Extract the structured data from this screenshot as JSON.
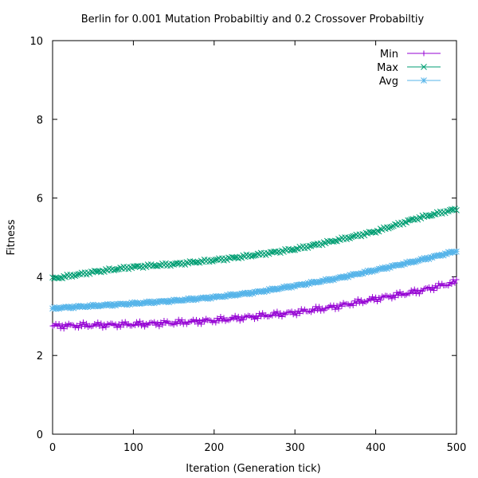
{
  "chart_data": {
    "type": "line",
    "title": "Berlin for 0.001 Mutation Probabiltiy and 0.2 Crossover Probabiltiy",
    "xlabel": "Iteration (Generation tick)",
    "ylabel": "Fitness",
    "xlim": [
      0,
      500
    ],
    "ylim": [
      0,
      10
    ],
    "xticks": [
      0,
      100,
      200,
      300,
      400,
      500
    ],
    "yticks": [
      0,
      2,
      4,
      6,
      8,
      10
    ],
    "legend_position": "top-right",
    "grid": false,
    "series": [
      {
        "name": "Min",
        "color": "#9400d3",
        "marker": "plus",
        "x": [
          0,
          50,
          100,
          150,
          200,
          250,
          300,
          350,
          400,
          450,
          500
        ],
        "y": [
          2.75,
          2.77,
          2.79,
          2.83,
          2.89,
          2.99,
          3.09,
          3.24,
          3.44,
          3.62,
          3.87
        ]
      },
      {
        "name": "Max",
        "color": "#009e73",
        "marker": "x",
        "x": [
          0,
          50,
          100,
          150,
          200,
          250,
          300,
          350,
          400,
          450,
          500
        ],
        "y": [
          3.95,
          4.12,
          4.25,
          4.32,
          4.42,
          4.55,
          4.7,
          4.92,
          5.15,
          5.48,
          5.72
        ]
      },
      {
        "name": "Avg",
        "color": "#56b4e9",
        "marker": "asterisk",
        "x": [
          0,
          50,
          100,
          150,
          200,
          250,
          300,
          350,
          400,
          450,
          500
        ],
        "y": [
          3.2,
          3.26,
          3.32,
          3.39,
          3.48,
          3.6,
          3.77,
          3.95,
          4.17,
          4.4,
          4.65
        ]
      }
    ]
  }
}
